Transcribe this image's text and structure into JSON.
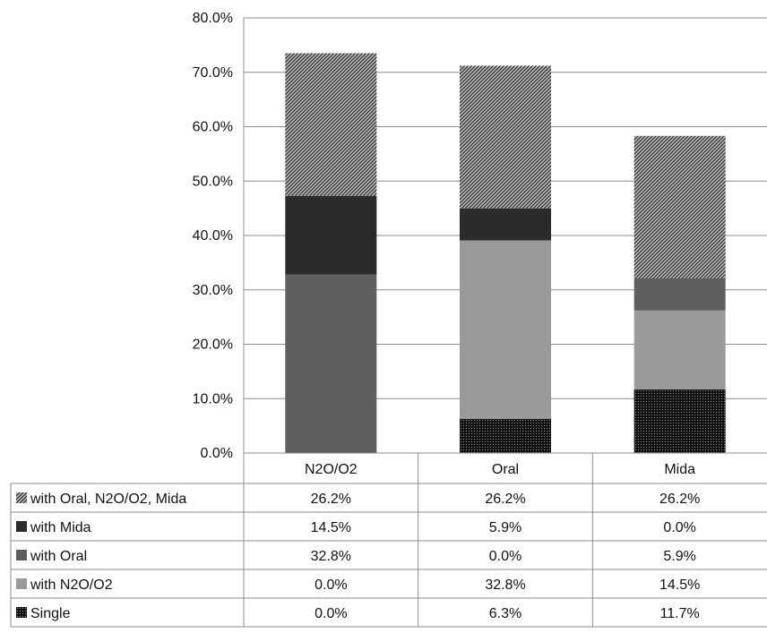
{
  "chart_data": {
    "type": "bar",
    "stacked": true,
    "categories": [
      "N2O/O2",
      "Oral",
      "Mida"
    ],
    "ylim": [
      0,
      80
    ],
    "y_ticks": [
      "0.0%",
      "10.0%",
      "20.0%",
      "30.0%",
      "40.0%",
      "50.0%",
      "60.0%",
      "70.0%",
      "80.0%"
    ],
    "grid": true,
    "legend_placement": "data-table-left",
    "series": [
      {
        "name": "Single",
        "values": [
          0.0,
          6.3,
          11.7
        ],
        "labels": [
          "0.0%",
          "6.3%",
          "11.7%"
        ],
        "color": "#1a1a1a",
        "pattern": "dots"
      },
      {
        "name": "with N2O/O2",
        "values": [
          0.0,
          32.8,
          14.5
        ],
        "labels": [
          "0.0%",
          "32.8%",
          "14.5%"
        ],
        "color": "#9a9a9a",
        "pattern": "solid"
      },
      {
        "name": "with Oral",
        "values": [
          32.8,
          0.0,
          5.9
        ],
        "labels": [
          "32.8%",
          "0.0%",
          "5.9%"
        ],
        "color": "#5f5f5f",
        "pattern": "solid"
      },
      {
        "name": "with Mida",
        "values": [
          14.5,
          5.9,
          0.0
        ],
        "labels": [
          "14.5%",
          "5.9%",
          "0.0%"
        ],
        "color": "#2b2b2b",
        "pattern": "solid"
      },
      {
        "name": "with Oral, N2O/O2, Mida",
        "values": [
          26.2,
          26.2,
          26.2
        ],
        "labels": [
          "26.2%",
          "26.2%",
          "26.2%"
        ],
        "color": "#7a7a7a",
        "pattern": "hatch"
      }
    ]
  }
}
